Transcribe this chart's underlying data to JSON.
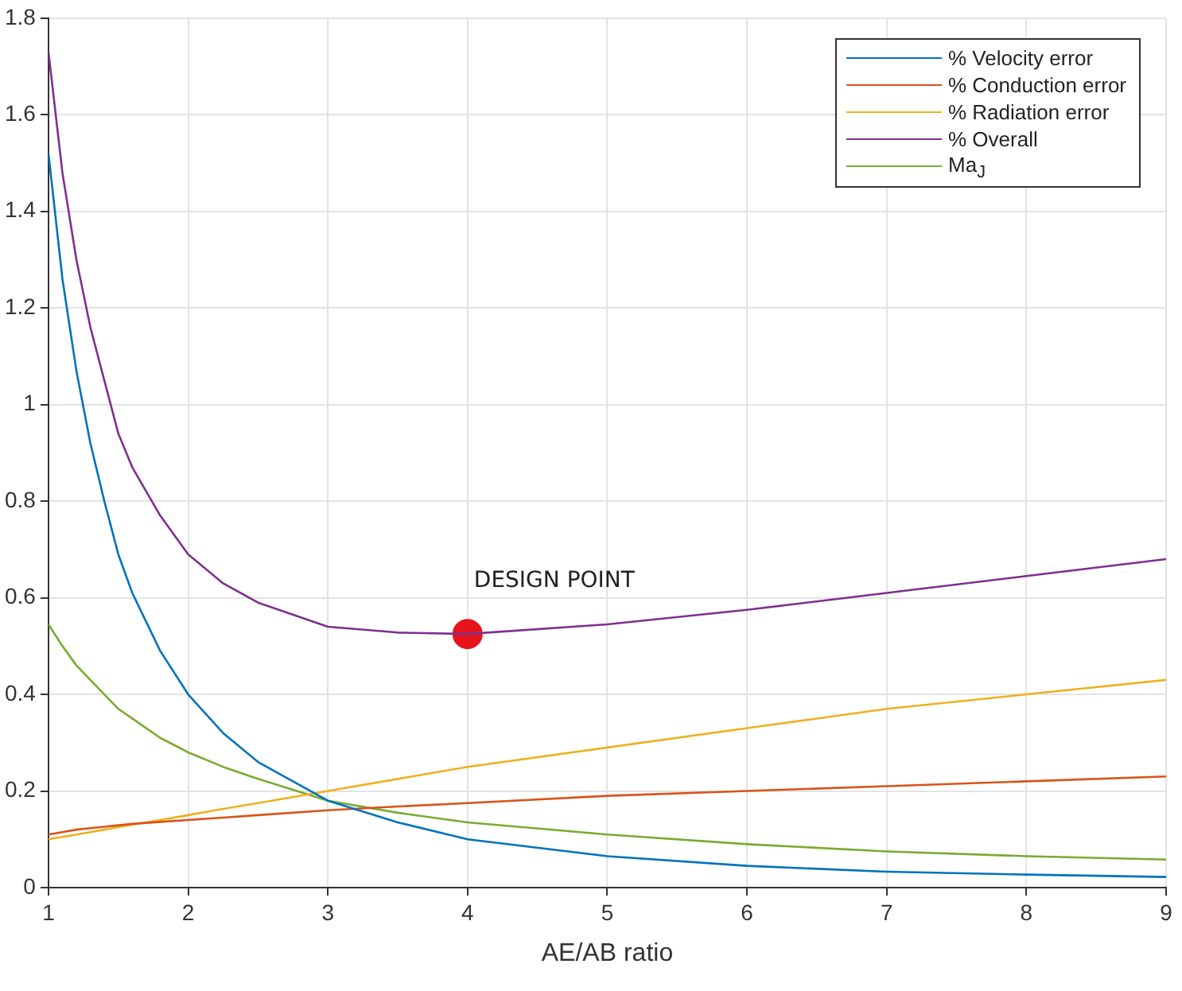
{
  "chart_data": {
    "type": "line",
    "xlabel": "AE/AB ratio",
    "xlim": [
      1,
      9
    ],
    "xticks": [
      1,
      2,
      3,
      4,
      5,
      6,
      7,
      8,
      9
    ],
    "ylim": [
      0,
      1.8
    ],
    "yticks": [
      0,
      0.2,
      0.4,
      0.6,
      0.8,
      1,
      1.2,
      1.4,
      1.6,
      1.8
    ],
    "grid": true,
    "legend": "top right",
    "marker": "none",
    "line_style": "solid",
    "x": [
      1,
      1.1,
      1.2,
      1.3,
      1.4,
      1.5,
      1.6,
      1.8,
      2,
      2.25,
      2.5,
      3,
      3.5,
      4,
      5,
      6,
      7,
      8,
      9
    ],
    "series": [
      {
        "name": "% Velocity error",
        "color": "#0072bd",
        "values": [
          1.52,
          1.26,
          1.07,
          0.92,
          0.8,
          0.69,
          0.61,
          0.49,
          0.4,
          0.32,
          0.26,
          0.18,
          0.135,
          0.1,
          0.065,
          0.045,
          0.033,
          0.027,
          0.022
        ]
      },
      {
        "name": "% Conduction error",
        "color": "#d95319",
        "values": [
          0.11,
          0.115,
          0.12,
          0.123,
          0.126,
          0.129,
          0.132,
          0.136,
          0.14,
          0.145,
          0.15,
          0.16,
          0.168,
          0.175,
          0.19,
          0.2,
          0.21,
          0.22,
          0.23
        ]
      },
      {
        "name": "% Radiation error",
        "color": "#edb120",
        "values": [
          0.1,
          0.105,
          0.11,
          0.115,
          0.12,
          0.125,
          0.13,
          0.14,
          0.15,
          0.163,
          0.175,
          0.2,
          0.225,
          0.25,
          0.29,
          0.33,
          0.37,
          0.4,
          0.43
        ]
      },
      {
        "name": "% Overall",
        "color": "#7e2f8e",
        "values": [
          1.73,
          1.48,
          1.3,
          1.16,
          1.05,
          0.94,
          0.87,
          0.77,
          0.69,
          0.63,
          0.59,
          0.54,
          0.528,
          0.525,
          0.545,
          0.575,
          0.61,
          0.645,
          0.68
        ]
      },
      {
        "name": "Ma$_{J}$",
        "color": "#77ac30",
        "values": [
          0.545,
          0.5,
          0.46,
          0.43,
          0.4,
          0.37,
          0.35,
          0.31,
          0.28,
          0.25,
          0.225,
          0.18,
          0.155,
          0.135,
          0.11,
          0.09,
          0.075,
          0.065,
          0.058
        ]
      },
      {
        "type": "scatter",
        "color": "#e8141c",
        "marker": "circle",
        "x": [
          4
        ],
        "values": [
          0.525
        ]
      }
    ],
    "annotations": [
      {
        "text": "DESIGN POINT",
        "x": 4,
        "y": 0.525
      }
    ]
  }
}
